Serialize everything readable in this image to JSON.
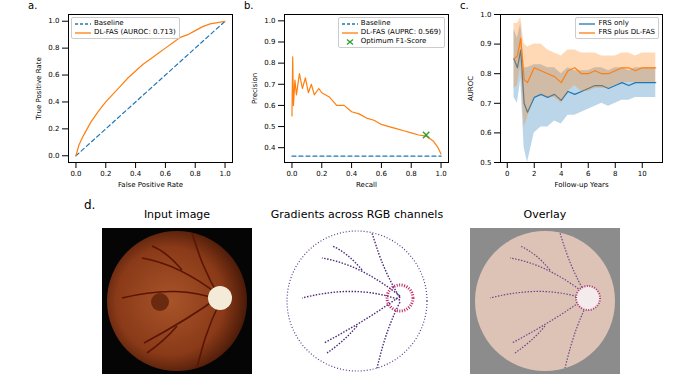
{
  "chart_data": [
    {
      "type": "line",
      "title": "a.",
      "xlabel": "False Positive Rate",
      "ylabel": "True Positive Rate",
      "xlim": [
        -0.05,
        1.05
      ],
      "ylim": [
        -0.05,
        1.05
      ],
      "xticks": [
        {
          "value": 0,
          "label": "0.0"
        },
        {
          "value": 0.2,
          "label": "0.2"
        },
        {
          "value": 0.4,
          "label": "0.4"
        },
        {
          "value": 0.6,
          "label": "0.6"
        },
        {
          "value": 0.8,
          "label": "0.8"
        },
        {
          "value": 1,
          "label": "1.0"
        }
      ],
      "yticks": [
        {
          "value": 0,
          "label": "0.0"
        },
        {
          "value": 0.2,
          "label": "0.2"
        },
        {
          "value": 0.4,
          "label": "0.4"
        },
        {
          "value": 0.6,
          "label": "0.6"
        },
        {
          "value": 0.8,
          "label": "0.8"
        },
        {
          "value": 1,
          "label": "1.0"
        }
      ],
      "legend": "upper left",
      "series": [
        {
          "name": "Baseline",
          "color": "#1f77b4",
          "line_style": "dashed",
          "x": [
            0,
            1
          ],
          "values": [
            0,
            1
          ]
        },
        {
          "name": "DL-FAS (AUROC: 0.713)",
          "color": "#ff7f0e",
          "line_style": "solid",
          "x": [
            0,
            0.02,
            0.05,
            0.1,
            0.15,
            0.2,
            0.25,
            0.3,
            0.35,
            0.4,
            0.45,
            0.5,
            0.55,
            0.6,
            0.65,
            0.7,
            0.75,
            0.8,
            0.85,
            0.9,
            0.95,
            1
          ],
          "values": [
            0,
            0.08,
            0.15,
            0.25,
            0.33,
            0.4,
            0.46,
            0.52,
            0.58,
            0.63,
            0.68,
            0.72,
            0.76,
            0.8,
            0.84,
            0.88,
            0.9,
            0.93,
            0.96,
            0.98,
            0.99,
            1
          ]
        }
      ]
    },
    {
      "type": "line",
      "title": "b.",
      "xlabel": "Recall",
      "ylabel": "Precision",
      "xlim": [
        -0.05,
        1.05
      ],
      "ylim": [
        0.33,
        1.03
      ],
      "xticks": [
        {
          "value": 0,
          "label": "0.0"
        },
        {
          "value": 0.2,
          "label": "0.2"
        },
        {
          "value": 0.4,
          "label": "0.4"
        },
        {
          "value": 0.6,
          "label": "0.6"
        },
        {
          "value": 0.8,
          "label": "0.8"
        },
        {
          "value": 1,
          "label": "1.0"
        }
      ],
      "yticks": [
        0.4,
        0.5,
        0.6,
        0.7,
        0.8,
        0.9,
        {
          "value": 1,
          "label": "1.0"
        }
      ],
      "legend": "upper right",
      "series": [
        {
          "name": "Baseline",
          "color": "#1f77b4",
          "line_style": "dashed",
          "x": [
            0,
            1
          ],
          "values": [
            0.36,
            0.36
          ]
        },
        {
          "name": "DL-FAS (AUPRC: 0.569)",
          "color": "#ff7f0e",
          "line_style": "solid",
          "x": [
            0,
            0.005,
            0.01,
            0.02,
            0.03,
            0.05,
            0.07,
            0.09,
            0.11,
            0.13,
            0.15,
            0.18,
            0.2,
            0.25,
            0.3,
            0.35,
            0.4,
            0.45,
            0.5,
            0.55,
            0.6,
            0.65,
            0.7,
            0.75,
            0.8,
            0.85,
            0.9,
            0.95,
            0.98,
            1
          ],
          "values": [
            0.55,
            0.83,
            0.6,
            0.72,
            0.65,
            0.75,
            0.68,
            0.73,
            0.66,
            0.7,
            0.65,
            0.68,
            0.66,
            0.64,
            0.6,
            0.6,
            0.57,
            0.56,
            0.54,
            0.53,
            0.51,
            0.5,
            0.49,
            0.48,
            0.47,
            0.46,
            0.455,
            0.43,
            0.4,
            0.37
          ]
        },
        {
          "name": "Optimum F1-Score",
          "type": "scatter",
          "marker": "x",
          "color": "#2ca02c",
          "x": [
            0.9
          ],
          "values": [
            0.46
          ]
        }
      ]
    },
    {
      "type": "line",
      "title": "c.",
      "xlabel": "Follow-up Years",
      "ylabel": "AUROC",
      "xlim": [
        -0.5,
        11.5
      ],
      "ylim": [
        0.5,
        1.0
      ],
      "xticks": [
        0,
        2,
        4,
        6,
        8,
        10
      ],
      "yticks": [
        0.5,
        0.6,
        0.7,
        0.8,
        0.9,
        {
          "value": 1,
          "label": "1.0"
        }
      ],
      "legend": "upper right",
      "series": [
        {
          "name": "FRS only",
          "color": "#1f77b4",
          "line_style": "solid",
          "x": [
            0.5,
            0.75,
            1,
            1.25,
            1.5,
            2,
            2.5,
            3,
            3.5,
            4,
            4.5,
            5,
            5.5,
            6,
            6.5,
            7,
            7.5,
            8,
            8.5,
            9,
            9.5,
            10,
            10.5,
            11
          ],
          "values": [
            0.85,
            0.82,
            0.88,
            0.7,
            0.67,
            0.72,
            0.73,
            0.72,
            0.73,
            0.71,
            0.74,
            0.73,
            0.74,
            0.75,
            0.76,
            0.76,
            0.75,
            0.76,
            0.77,
            0.76,
            0.77,
            0.77,
            0.77,
            0.77
          ],
          "lower": [
            0.72,
            0.7,
            0.78,
            0.55,
            0.5,
            0.6,
            0.62,
            0.62,
            0.64,
            0.63,
            0.66,
            0.66,
            0.67,
            0.68,
            0.69,
            0.7,
            0.69,
            0.7,
            0.71,
            0.71,
            0.72,
            0.72,
            0.72,
            0.72
          ],
          "upper": [
            0.95,
            0.92,
            0.97,
            0.82,
            0.82,
            0.83,
            0.83,
            0.82,
            0.82,
            0.8,
            0.82,
            0.81,
            0.81,
            0.81,
            0.82,
            0.82,
            0.81,
            0.82,
            0.82,
            0.81,
            0.82,
            0.82,
            0.82,
            0.82
          ]
        },
        {
          "name": "FRS plus DL-FAS",
          "color": "#ff7f0e",
          "line_style": "solid",
          "x": [
            0.5,
            0.75,
            1,
            1.25,
            1.5,
            2,
            2.5,
            3,
            3.5,
            4,
            4.5,
            5,
            5.5,
            6,
            6.5,
            7,
            7.5,
            8,
            8.5,
            9,
            9.5,
            10,
            10.5,
            11
          ],
          "values": [
            0.85,
            0.86,
            0.92,
            0.78,
            0.77,
            0.82,
            0.81,
            0.8,
            0.79,
            0.77,
            0.81,
            0.82,
            0.8,
            0.8,
            0.81,
            0.8,
            0.8,
            0.81,
            0.82,
            0.82,
            0.81,
            0.82,
            0.82,
            0.82
          ],
          "lower": [
            0.75,
            0.76,
            0.83,
            0.62,
            0.65,
            0.72,
            0.73,
            0.72,
            0.72,
            0.7,
            0.74,
            0.76,
            0.74,
            0.74,
            0.75,
            0.75,
            0.75,
            0.76,
            0.77,
            0.77,
            0.77,
            0.77,
            0.77,
            0.77
          ],
          "upper": [
            0.97,
            0.97,
            0.99,
            0.9,
            0.89,
            0.9,
            0.9,
            0.88,
            0.87,
            0.86,
            0.88,
            0.88,
            0.87,
            0.87,
            0.87,
            0.86,
            0.86,
            0.86,
            0.87,
            0.87,
            0.86,
            0.87,
            0.87,
            0.87
          ]
        }
      ]
    }
  ],
  "panel_d": {
    "label": "d.",
    "images": [
      {
        "title": "Input image"
      },
      {
        "title": "Gradients across RGB channels"
      },
      {
        "title": "Overlay"
      }
    ]
  }
}
